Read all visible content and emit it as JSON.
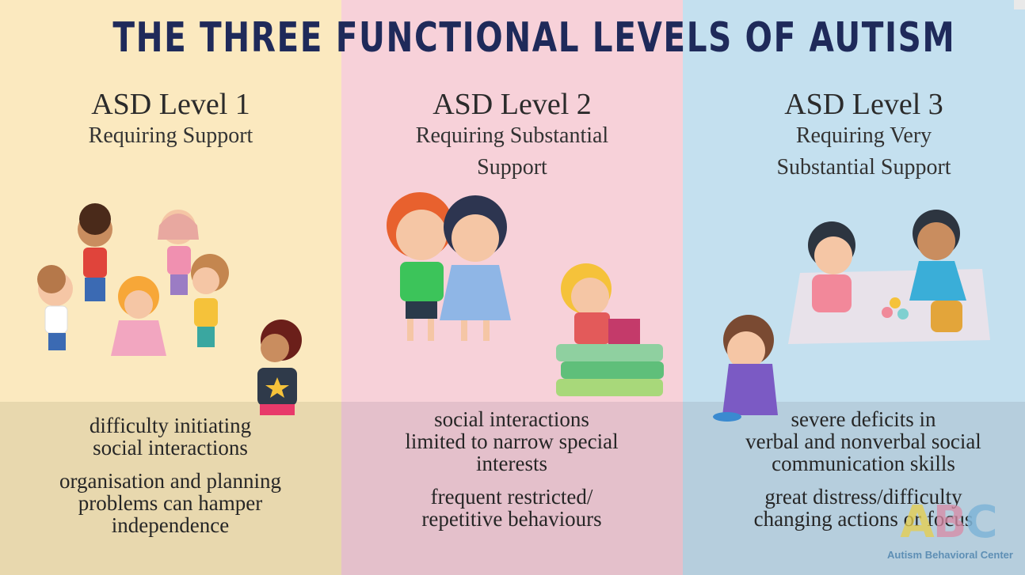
{
  "title": "THE THREE FUNCTIONAL LEVELS OF AUTISM",
  "levels": [
    {
      "name": "ASD Level 1",
      "subtitle_lines": [
        "Requiring Support"
      ],
      "descriptions": [
        [
          "difficulty initiating",
          "social interactions"
        ],
        [
          "organisation and planning",
          "problems can hamper",
          "independence"
        ]
      ]
    },
    {
      "name": "ASD Level 2",
      "subtitle_lines": [
        "Requiring Substantial",
        "Support"
      ],
      "descriptions": [
        [
          "social interactions",
          "limited to narrow special",
          "interests"
        ],
        [
          "frequent restricted/",
          "repetitive behaviours"
        ]
      ]
    },
    {
      "name": "ASD Level 3",
      "subtitle_lines": [
        "Requiring Very",
        "Substantial Support"
      ],
      "descriptions": [
        [
          "severe deficits in",
          "verbal and nonverbal social",
          "communication skills"
        ],
        [
          "great distress/difficulty",
          "changing actions or focus"
        ]
      ]
    }
  ],
  "logo": {
    "letters": [
      "A",
      "B",
      "C"
    ],
    "name": "Autism Behavioral Center"
  },
  "colors": {
    "title": "#1f2a5a",
    "level1_bg": "#fbe9bf",
    "level2_bg": "#f7d1d9",
    "level3_bg": "#c4e0ef"
  }
}
